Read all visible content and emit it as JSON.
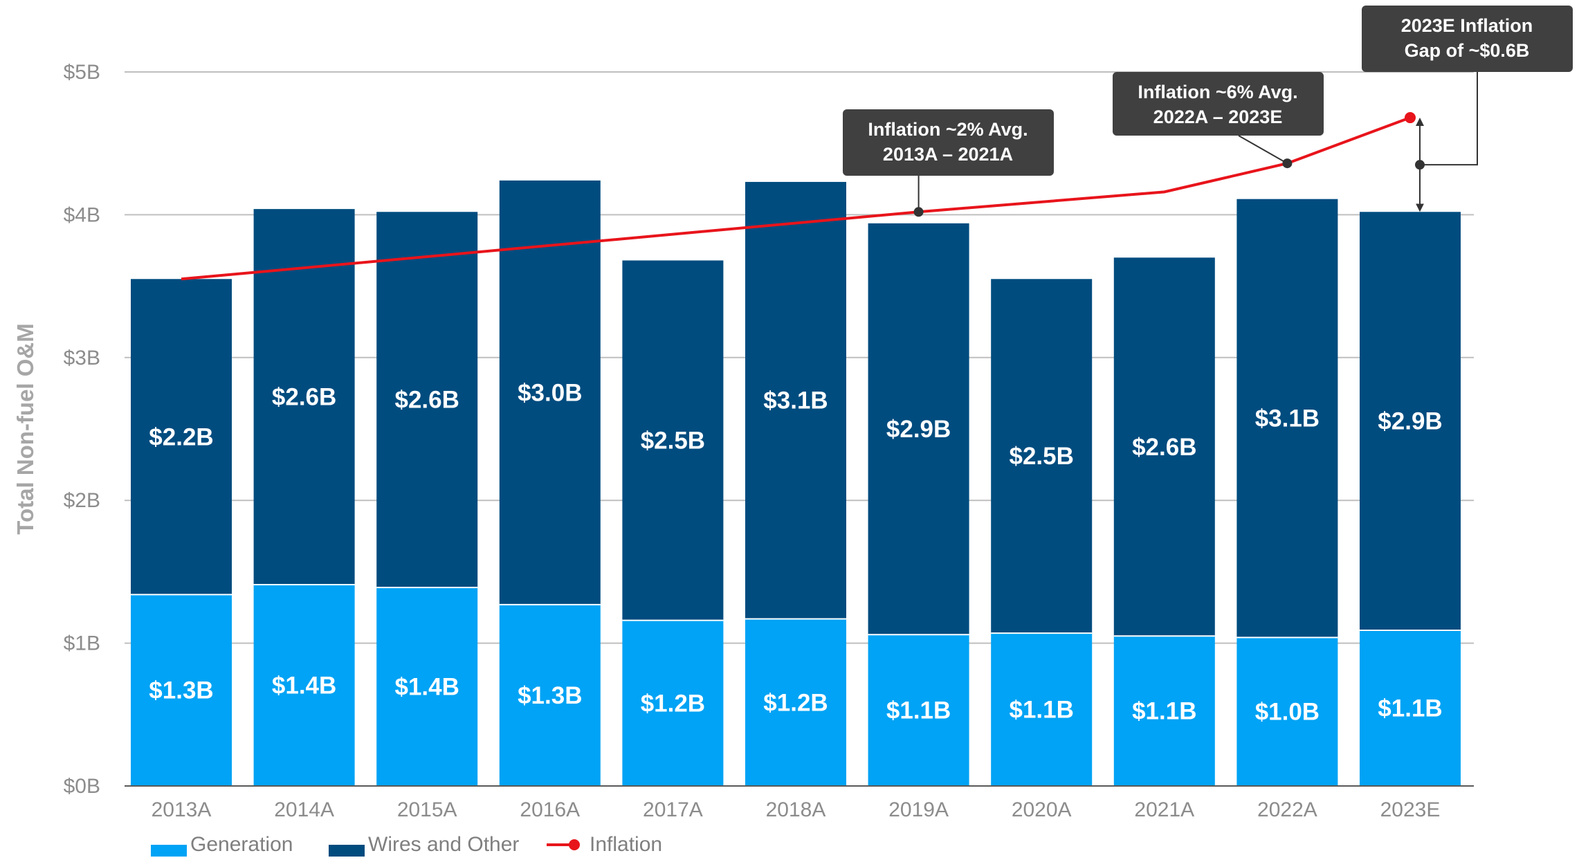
{
  "chart_data": {
    "type": "bar",
    "stacked": true,
    "ylabel": "Total Non-fuel O&M",
    "ylim": [
      0,
      5
    ],
    "yticks": [
      0,
      1,
      2,
      3,
      4,
      5
    ],
    "ytick_labels": [
      "$0B",
      "$1B",
      "$2B",
      "$3B",
      "$4B",
      "$5B"
    ],
    "grid": true,
    "categories": [
      "2013A",
      "2014A",
      "2015A",
      "2016A",
      "2017A",
      "2018A",
      "2019A",
      "2020A",
      "2021A",
      "2022A",
      "2023E"
    ],
    "series": [
      {
        "name": "Generation",
        "color": "#00a3f5",
        "values": [
          1.34,
          1.41,
          1.39,
          1.27,
          1.16,
          1.17,
          1.06,
          1.07,
          1.05,
          1.04,
          1.09
        ],
        "labels": [
          "$1.3B",
          "$1.4B",
          "$1.4B",
          "$1.3B",
          "$1.2B",
          "$1.2B",
          "$1.1B",
          "$1.1B",
          "$1.1B",
          "$1.0B",
          "$1.1B"
        ]
      },
      {
        "name": "Wires and Other",
        "color": "#004c7f",
        "values": [
          2.21,
          2.63,
          2.63,
          2.97,
          2.52,
          3.06,
          2.88,
          2.48,
          2.65,
          3.07,
          2.93
        ],
        "labels": [
          "$2.2B",
          "$2.6B",
          "$2.6B",
          "$3.0B",
          "$2.5B",
          "$3.1B",
          "$2.9B",
          "$2.5B",
          "$2.6B",
          "$3.1B",
          "$2.9B"
        ]
      }
    ],
    "line_series": {
      "name": "Inflation",
      "color": "#e8141b",
      "x": [
        "2013A",
        "2019A",
        "2021A",
        "2022A",
        "2023E"
      ],
      "y": [
        3.55,
        4.02,
        4.16,
        4.36,
        4.68
      ]
    },
    "annotations": [
      {
        "lines": [
          "Inflation ~2% Avg.",
          "2013A – 2021A"
        ],
        "anchor_category": "2019A",
        "anchor_y": 4.02
      },
      {
        "lines": [
          "Inflation ~6% Avg.",
          "2022A – 2023E"
        ],
        "anchor_category": "2022A",
        "anchor_y": 4.36
      },
      {
        "lines": [
          "2023E Inflation",
          "Gap of ~$0.6B"
        ],
        "anchor_category": "2023E",
        "gap_from": 4.02,
        "gap_to": 4.68
      }
    ],
    "legend": {
      "position": "bottom-left",
      "items": [
        "Generation",
        "Wires and Other",
        "Inflation"
      ]
    }
  }
}
